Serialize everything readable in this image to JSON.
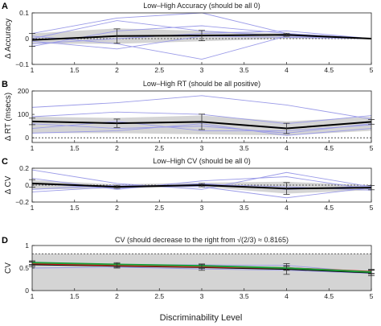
{
  "figure": {
    "xlabel": "Discriminability Level"
  },
  "chart_data": [
    {
      "type": "line",
      "letter": "A",
      "title": "Low–High Accuracy (should be all 0)",
      "ylabel": "Δ Accuracy",
      "x": [
        1,
        2,
        3,
        4,
        5
      ],
      "xticks": [
        "1",
        "1.5",
        "2",
        "2.5",
        "3",
        "3.5",
        "4",
        "4.5",
        "5"
      ],
      "xlim": [
        1,
        5
      ],
      "ylim": [
        -0.1,
        0.1
      ],
      "yticks": [
        -0.1,
        0,
        0.1
      ],
      "ytick_labels": [
        "−0.1",
        "0",
        "0.1"
      ],
      "reference_line": 0,
      "band": {
        "lower": [
          -0.02,
          -0.02,
          -0.01,
          0.0,
          0.0
        ],
        "upper": [
          0.02,
          0.04,
          0.03,
          0.02,
          0.0
        ]
      },
      "series": [
        {
          "role": "mean",
          "values": [
            -0.005,
            0.01,
            0.012,
            0.015,
            0.0
          ],
          "err": [
            0.025,
            0.028,
            0.02,
            0.006,
            0.0
          ]
        },
        {
          "role": "subject",
          "values": [
            0.02,
            0.08,
            0.1,
            0.02,
            0.0
          ]
        },
        {
          "role": "subject",
          "values": [
            0.0,
            0.07,
            0.03,
            0.01,
            0.0
          ]
        },
        {
          "role": "subject",
          "values": [
            -0.03,
            0.03,
            0.05,
            0.02,
            0.0
          ]
        },
        {
          "role": "subject",
          "values": [
            -0.01,
            -0.04,
            0.01,
            0.005,
            0.0
          ]
        },
        {
          "role": "subject",
          "values": [
            0.01,
            -0.02,
            -0.08,
            0.01,
            0.0
          ]
        },
        {
          "role": "subject",
          "values": [
            -0.02,
            0.0,
            0.02,
            0.03,
            0.0
          ]
        }
      ]
    },
    {
      "type": "line",
      "letter": "B",
      "title": "Low–High RT (should be all positive)",
      "ylabel": "Δ RT (msecs)",
      "x": [
        1,
        2,
        3,
        4,
        5
      ],
      "xticks": [
        "1",
        "1.5",
        "2",
        "2.5",
        "3",
        "3.5",
        "4",
        "4.5",
        "5"
      ],
      "xlim": [
        1,
        5
      ],
      "ylim": [
        -20,
        200
      ],
      "yticks": [
        0,
        100,
        200
      ],
      "ytick_labels": [
        "0",
        "100",
        "200"
      ],
      "reference_line": 0,
      "band": {
        "lower": [
          20,
          20,
          15,
          10,
          30
        ],
        "upper": [
          90,
          85,
          95,
          70,
          90
        ]
      },
      "series": [
        {
          "role": "mean",
          "values": [
            70,
            62,
            68,
            40,
            68
          ],
          "err": [
            14,
            18,
            33,
            22,
            10
          ]
        },
        {
          "role": "subject",
          "values": [
            130,
            150,
            180,
            140,
            80
          ]
        },
        {
          "role": "subject",
          "values": [
            90,
            110,
            100,
            60,
            95
          ]
        },
        {
          "role": "subject",
          "values": [
            60,
            40,
            50,
            20,
            60
          ]
        },
        {
          "role": "subject",
          "values": [
            40,
            70,
            30,
            30,
            55
          ]
        },
        {
          "role": "subject",
          "values": [
            20,
            30,
            60,
            10,
            40
          ]
        }
      ]
    },
    {
      "type": "line",
      "letter": "C",
      "title": "Low–High CV (should be all 0)",
      "ylabel": "Δ CV",
      "x": [
        1,
        2,
        3,
        4,
        5
      ],
      "xticks": [
        "1",
        "1.5",
        "2",
        "2.5",
        "3",
        "3.5",
        "4",
        "4.5",
        "5"
      ],
      "xlim": [
        1,
        5
      ],
      "ylim": [
        -0.2,
        0.2
      ],
      "yticks": [
        -0.2,
        0,
        0.2
      ],
      "ytick_labels": [
        "−0.2",
        "0",
        "0.2"
      ],
      "reference_line": 0,
      "band": {
        "lower": [
          -0.05,
          -0.04,
          -0.02,
          -0.1,
          -0.06
        ],
        "upper": [
          0.06,
          0.01,
          0.03,
          0.04,
          0.0
        ]
      },
      "series": [
        {
          "role": "mean",
          "values": [
            0.02,
            -0.02,
            0.0,
            -0.04,
            -0.03
          ],
          "err": [
            0.045,
            0.018,
            0.02,
            0.07,
            0.025
          ]
        },
        {
          "role": "subject",
          "values": [
            0.18,
            0.02,
            -0.05,
            0.15,
            -0.02
          ]
        },
        {
          "role": "subject",
          "values": [
            0.08,
            -0.05,
            0.05,
            0.1,
            -0.05
          ]
        },
        {
          "role": "subject",
          "values": [
            -0.05,
            0.0,
            -0.02,
            -0.15,
            -0.03
          ]
        },
        {
          "role": "subject",
          "values": [
            0.02,
            -0.04,
            0.02,
            -0.05,
            -0.01
          ]
        },
        {
          "role": "subject",
          "values": [
            -0.08,
            -0.02,
            0.01,
            -0.02,
            -0.06
          ]
        }
      ]
    },
    {
      "type": "line",
      "letter": "D",
      "title": "CV (should decrease to the right from",
      "title_math": "√(2/3) ≈ 0.8165)",
      "ylabel": "CV",
      "x": [
        1,
        2,
        3,
        4,
        5
      ],
      "xticks": [
        "1",
        "1.5",
        "2",
        "2.5",
        "3",
        "3.5",
        "4",
        "4.5",
        "5"
      ],
      "xlim": [
        1,
        5
      ],
      "ylim": [
        0,
        1
      ],
      "yticks": [
        0,
        0.5,
        1
      ],
      "ytick_labels": [
        "0",
        "0.5",
        "1"
      ],
      "reference_line": 0.8165,
      "band": {
        "lower": [
          0,
          0,
          0,
          0,
          0
        ],
        "upper": [
          0.8165,
          0.8165,
          0.8165,
          0.8165,
          0.8165
        ]
      },
      "colors": {
        "green": "#1a9e3a",
        "red": "#d62020",
        "black": "#000000",
        "subject": "#9b9be8",
        "band": "#d4d4d4"
      },
      "series": [
        {
          "role": "mean",
          "color": "black",
          "values": [
            0.58,
            0.55,
            0.52,
            0.48,
            0.4
          ],
          "err": [
            0.05,
            0.05,
            0.07,
            0.12,
            0.07
          ]
        },
        {
          "role": "mean",
          "color": "red",
          "values": [
            0.6,
            0.56,
            0.53,
            0.5,
            0.42
          ],
          "err": [
            0.04,
            0.04,
            0.04,
            0.05,
            0.04
          ]
        },
        {
          "role": "mean",
          "color": "green",
          "values": [
            0.62,
            0.58,
            0.55,
            0.5,
            0.41
          ],
          "err": [
            0.04,
            0.04,
            0.04,
            0.04,
            0.04
          ]
        },
        {
          "role": "subject",
          "values": [
            0.6,
            0.58,
            0.57,
            0.56,
            0.4
          ]
        },
        {
          "role": "subject",
          "values": [
            0.5,
            0.52,
            0.48,
            0.45,
            0.38
          ]
        }
      ]
    }
  ]
}
